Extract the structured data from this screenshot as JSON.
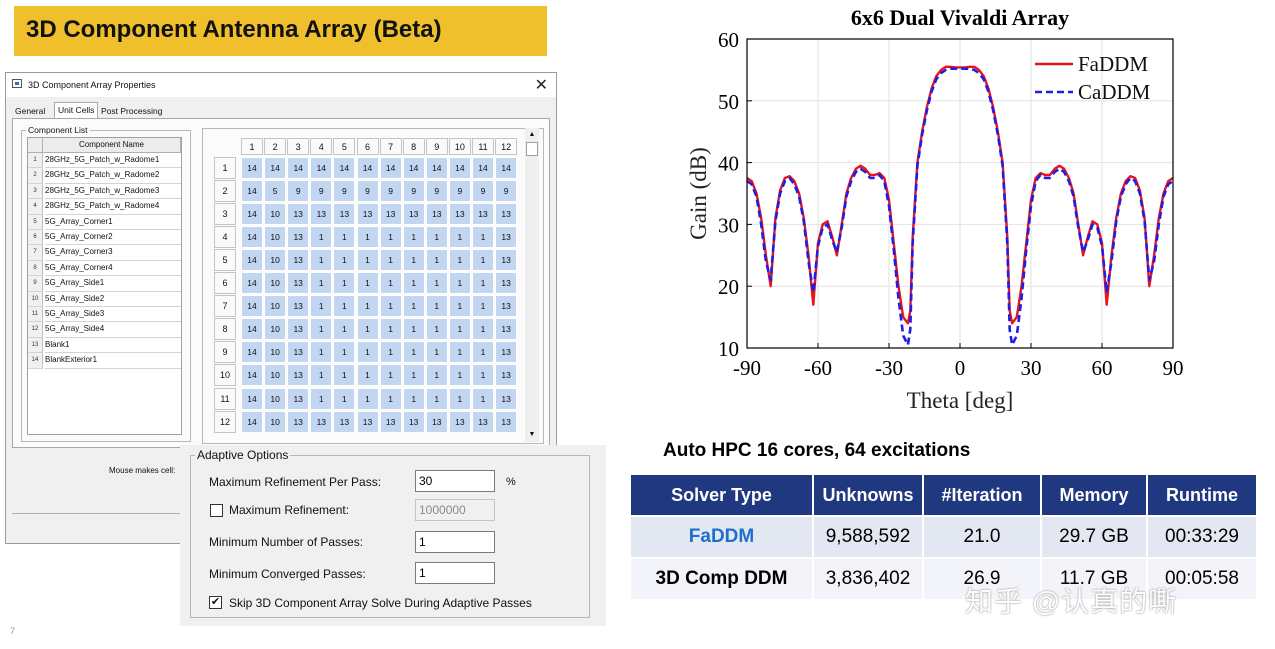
{
  "slide": {
    "banner": "3D Component Antenna Array (Beta)",
    "page_number": "7"
  },
  "dialog": {
    "title": "3D Component Array Properties",
    "close_glyph": "✕",
    "tabs": [
      "General",
      "Unit Cells",
      "Post Processing"
    ],
    "active_tab": "Unit Cells",
    "component_list_label": "Component List",
    "component_name_header": "Component Name",
    "components": [
      "28GHz_5G_Patch_w_Radome1",
      "28GHz_5G_Patch_w_Radome2",
      "28GHz_5G_Patch_w_Radome3",
      "28GHz_5G_Patch_w_Radome4",
      "5G_Array_Corner1",
      "5G_Array_Corner2",
      "5G_Array_Corner3",
      "5G_Array_Corner4",
      "5G_Array_Side1",
      "5G_Array_Side2",
      "5G_Array_Side3",
      "5G_Array_Side4",
      "Blank1",
      "BlankExterior1"
    ],
    "grid_columns": [
      "1",
      "2",
      "3",
      "4",
      "5",
      "6",
      "7",
      "8",
      "9",
      "10",
      "11",
      "12"
    ],
    "grid_rows": [
      "1",
      "2",
      "3",
      "4",
      "5",
      "6",
      "7",
      "8",
      "9",
      "10",
      "11",
      "12"
    ],
    "grid": [
      [
        "14",
        "14",
        "14",
        "14",
        "14",
        "14",
        "14",
        "14",
        "14",
        "14",
        "14",
        "14"
      ],
      [
        "14",
        "5",
        "9",
        "9",
        "9",
        "9",
        "9",
        "9",
        "9",
        "9",
        "9",
        "9"
      ],
      [
        "14",
        "10",
        "13",
        "13",
        "13",
        "13",
        "13",
        "13",
        "13",
        "13",
        "13",
        "13"
      ],
      [
        "14",
        "10",
        "13",
        "1",
        "1",
        "1",
        "1",
        "1",
        "1",
        "1",
        "1",
        "13"
      ],
      [
        "14",
        "10",
        "13",
        "1",
        "1",
        "1",
        "1",
        "1",
        "1",
        "1",
        "1",
        "13"
      ],
      [
        "14",
        "10",
        "13",
        "1",
        "1",
        "1",
        "1",
        "1",
        "1",
        "1",
        "1",
        "13"
      ],
      [
        "14",
        "10",
        "13",
        "1",
        "1",
        "1",
        "1",
        "1",
        "1",
        "1",
        "1",
        "13"
      ],
      [
        "14",
        "10",
        "13",
        "1",
        "1",
        "1",
        "1",
        "1",
        "1",
        "1",
        "1",
        "13"
      ],
      [
        "14",
        "10",
        "13",
        "1",
        "1",
        "1",
        "1",
        "1",
        "1",
        "1",
        "1",
        "13"
      ],
      [
        "14",
        "10",
        "13",
        "1",
        "1",
        "1",
        "1",
        "1",
        "1",
        "1",
        "1",
        "13"
      ],
      [
        "14",
        "10",
        "13",
        "1",
        "1",
        "1",
        "1",
        "1",
        "1",
        "1",
        "1",
        "13"
      ],
      [
        "14",
        "10",
        "13",
        "13",
        "13",
        "13",
        "13",
        "13",
        "13",
        "13",
        "13",
        "13"
      ]
    ],
    "mouse_label": "Mouse makes cell:"
  },
  "adaptive": {
    "title": "Adaptive Options",
    "max_refinement_per_pass_label": "Maximum Refinement Per Pass:",
    "max_refinement_per_pass_value": "30",
    "percent_unit": "%",
    "max_refinement_label": "Maximum Refinement:",
    "max_refinement_value": "1000000",
    "max_refinement_checked": false,
    "min_passes_label": "Minimum Number of Passes:",
    "min_passes_value": "1",
    "min_converged_label": "Minimum Converged Passes:",
    "min_converged_value": "1",
    "skip_label": "Skip 3D Component Array Solve During Adaptive Passes",
    "skip_checked": true,
    "check_glyph": "✔"
  },
  "chart_data": {
    "type": "line",
    "title": "6x6 Dual Vivaldi Array",
    "xlabel": "Theta [deg]",
    "ylabel": "Gain (dB)",
    "xlim": [
      -90,
      90
    ],
    "ylim": [
      10,
      60
    ],
    "xticks": [
      "-90",
      "-60",
      "-30",
      "0",
      "30",
      "60",
      "90"
    ],
    "yticks": [
      "10",
      "20",
      "30",
      "40",
      "50",
      "60"
    ],
    "grid": true,
    "legend_position": "top-right",
    "series": [
      {
        "name": "FaDDM",
        "color": "#e8141a",
        "style": "solid",
        "x": [
          -90,
          -88,
          -86,
          -84,
          -82,
          -80,
          -78,
          -76,
          -74,
          -72,
          -70,
          -68,
          -66,
          -64,
          -62,
          -60,
          -58,
          -56,
          -54,
          -52,
          -50,
          -48,
          -46,
          -44,
          -42,
          -40,
          -38,
          -36,
          -34,
          -32,
          -30,
          -28,
          -26,
          -24,
          -22,
          -21,
          -20,
          -18,
          -16,
          -14,
          -12,
          -10,
          -8,
          -6,
          -4,
          -2,
          0,
          2,
          4,
          6,
          8,
          10,
          12,
          14,
          16,
          18,
          20,
          21,
          22,
          24,
          26,
          28,
          30,
          32,
          34,
          36,
          38,
          40,
          42,
          44,
          46,
          48,
          50,
          52,
          54,
          56,
          58,
          60,
          62,
          64,
          66,
          68,
          70,
          72,
          74,
          76,
          78,
          80,
          82,
          84,
          86,
          88,
          90
        ],
        "y": [
          37.5,
          37,
          35,
          31,
          25,
          20,
          31,
          35.5,
          37.5,
          37.8,
          37,
          35,
          31,
          25,
          17,
          27,
          30,
          30.5,
          28,
          25,
          30,
          35,
          37.5,
          39,
          39.5,
          39,
          38,
          38,
          38.3,
          37.5,
          34,
          27,
          20,
          15,
          14,
          16,
          28,
          40,
          45,
          49,
          52,
          54,
          55,
          55.5,
          55.5,
          55.4,
          55.4,
          55.4,
          55.5,
          55.5,
          55,
          54,
          52,
          49,
          45,
          40,
          28,
          16,
          14,
          15,
          20,
          27,
          34,
          37.5,
          38.3,
          38,
          38,
          39,
          39.5,
          39,
          37.5,
          35,
          30,
          25,
          28,
          30.5,
          30,
          27,
          17,
          25,
          31,
          35,
          37,
          37.8,
          37.5,
          35.5,
          31,
          20,
          25,
          31,
          35,
          37,
          37.5
        ]
      },
      {
        "name": "CaDDM",
        "color": "#1e1ee6",
        "style": "dashed",
        "x": [
          -90,
          -88,
          -86,
          -84,
          -82,
          -80,
          -78,
          -76,
          -74,
          -72,
          -70,
          -68,
          -66,
          -64,
          -62,
          -60,
          -58,
          -56,
          -54,
          -52,
          -50,
          -48,
          -46,
          -44,
          -42,
          -40,
          -38,
          -36,
          -34,
          -32,
          -30,
          -28,
          -26,
          -24,
          -22,
          -21,
          -20,
          -18,
          -16,
          -14,
          -12,
          -10,
          -8,
          -6,
          -4,
          -2,
          0,
          2,
          4,
          6,
          8,
          10,
          12,
          14,
          16,
          18,
          20,
          21,
          22,
          24,
          26,
          28,
          30,
          32,
          34,
          36,
          38,
          40,
          42,
          44,
          46,
          48,
          50,
          52,
          54,
          56,
          58,
          60,
          62,
          64,
          66,
          68,
          70,
          72,
          74,
          76,
          78,
          80,
          82,
          84,
          86,
          88,
          90
        ],
        "y": [
          37,
          36.5,
          34.5,
          30,
          24,
          21,
          30.5,
          35,
          37,
          37.5,
          36.5,
          34.5,
          30.5,
          24,
          19,
          26.5,
          29.5,
          30,
          27.5,
          25.5,
          29.5,
          34.5,
          37,
          38.5,
          39,
          38.5,
          37.5,
          37.5,
          38,
          37,
          33,
          26,
          18,
          12,
          10.5,
          13,
          27,
          39.5,
          44.5,
          48.5,
          51.5,
          53.5,
          54.5,
          55,
          55.2,
          55.2,
          55.2,
          55.2,
          55.2,
          55,
          54.5,
          53.5,
          51.5,
          48.5,
          44.5,
          39.5,
          27,
          13,
          10.5,
          12,
          18,
          26,
          33,
          37,
          38,
          37.5,
          37.5,
          38.5,
          39,
          38.5,
          37,
          34.5,
          29.5,
          25.5,
          27.5,
          30,
          29.5,
          26.5,
          19,
          24,
          30.5,
          34.5,
          36.5,
          37.5,
          37,
          35,
          30.5,
          21,
          24,
          30,
          34.5,
          36.5,
          37
        ]
      }
    ]
  },
  "hpc": {
    "title": "Auto HPC 16 cores, 64 excitations",
    "headers": [
      "Solver Type",
      "Unknowns",
      "#Iteration",
      "Memory",
      "Runtime"
    ],
    "rows": [
      [
        "FaDDM",
        "9,588,592",
        "21.0",
        "29.7 GB",
        "00:33:29"
      ],
      [
        "3D Comp DDM",
        "3,836,402",
        "26.9",
        "11.7 GB",
        "00:05:58"
      ]
    ],
    "faddm_color": "#1f6fd0"
  },
  "watermark": "知乎 @认真的嘶"
}
